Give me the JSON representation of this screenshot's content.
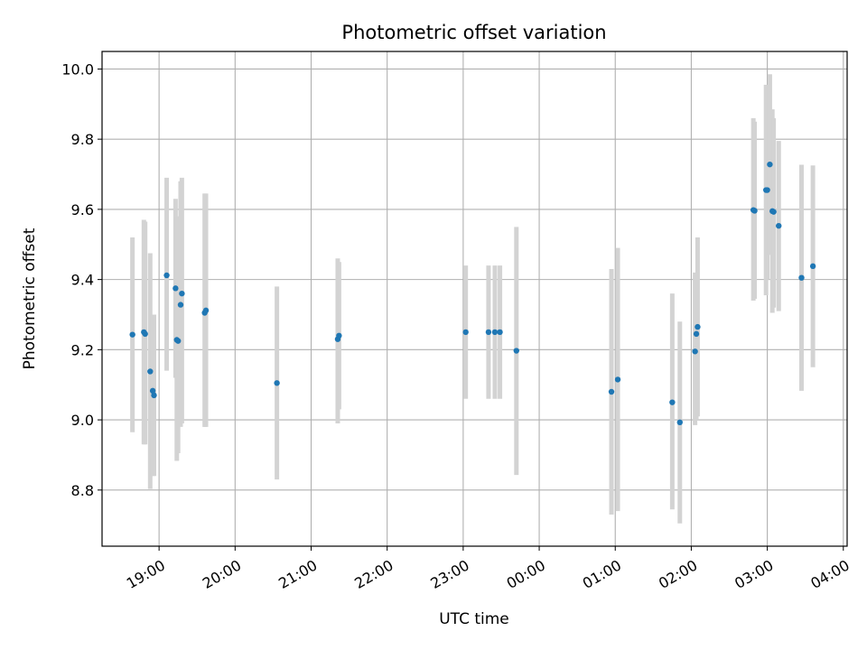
{
  "chart_data": {
    "type": "scatter",
    "title": "Photometric offset variation",
    "xlabel": "UTC time",
    "ylabel": "Photometric offset",
    "grid": true,
    "x_ticks": [
      "19:00",
      "20:00",
      "21:00",
      "22:00",
      "23:00",
      "00:00",
      "01:00",
      "02:00",
      "03:00",
      "04:00"
    ],
    "y_ticks": [
      "8.8",
      "9.0",
      "9.2",
      "9.4",
      "9.6",
      "9.8",
      "10.0"
    ],
    "xlim": [
      "18:15",
      "04:03"
    ],
    "ylim": [
      8.64,
      10.05
    ],
    "colors": {
      "marker": "#1f77b4",
      "errorbar": "#d3d3d3",
      "grid": "#b0b0b0"
    },
    "points": [
      {
        "x": "18:39",
        "y": 9.243,
        "ylo": 8.965,
        "yhi": 9.52
      },
      {
        "x": "18:48",
        "y": 9.25,
        "ylo": 8.93,
        "yhi": 9.57
      },
      {
        "x": "18:49",
        "y": 9.245,
        "ylo": 8.93,
        "yhi": 9.565
      },
      {
        "x": "18:53",
        "y": 9.138,
        "ylo": 8.803,
        "yhi": 9.475
      },
      {
        "x": "18:55",
        "y": 9.083,
        "ylo": 8.84,
        "yhi": 9.3
      },
      {
        "x": "18:56",
        "y": 9.07,
        "ylo": 8.84,
        "yhi": 9.3
      },
      {
        "x": "19:06",
        "y": 9.412,
        "ylo": 9.14,
        "yhi": 9.69
      },
      {
        "x": "19:13",
        "y": 9.375,
        "ylo": 9.12,
        "yhi": 9.63
      },
      {
        "x": "19:14",
        "y": 9.228,
        "ylo": 8.883,
        "yhi": 9.58
      },
      {
        "x": "19:15",
        "y": 9.225,
        "ylo": 8.905,
        "yhi": 9.58
      },
      {
        "x": "19:17",
        "y": 9.328,
        "ylo": 8.98,
        "yhi": 9.68
      },
      {
        "x": "19:18",
        "y": 9.36,
        "ylo": 8.99,
        "yhi": 9.69
      },
      {
        "x": "19:36",
        "y": 9.305,
        "ylo": 8.98,
        "yhi": 9.645
      },
      {
        "x": "19:37",
        "y": 9.312,
        "ylo": 8.98,
        "yhi": 9.645
      },
      {
        "x": "20:33",
        "y": 9.105,
        "ylo": 8.83,
        "yhi": 9.38
      },
      {
        "x": "21:21",
        "y": 9.23,
        "ylo": 8.99,
        "yhi": 9.46
      },
      {
        "x": "21:22",
        "y": 9.24,
        "ylo": 9.03,
        "yhi": 9.45
      },
      {
        "x": "23:02",
        "y": 9.25,
        "ylo": 9.06,
        "yhi": 9.44
      },
      {
        "x": "23:20",
        "y": 9.25,
        "ylo": 9.06,
        "yhi": 9.44
      },
      {
        "x": "23:25",
        "y": 9.25,
        "ylo": 9.06,
        "yhi": 9.44
      },
      {
        "x": "23:29",
        "y": 9.25,
        "ylo": 9.06,
        "yhi": 9.44
      },
      {
        "x": "23:42",
        "y": 9.197,
        "ylo": 8.843,
        "yhi": 9.55
      },
      {
        "x": "00:57",
        "y": 9.08,
        "ylo": 8.73,
        "yhi": 9.43
      },
      {
        "x": "01:02",
        "y": 9.115,
        "ylo": 8.74,
        "yhi": 9.49
      },
      {
        "x": "01:45",
        "y": 9.05,
        "ylo": 8.745,
        "yhi": 9.36
      },
      {
        "x": "01:51",
        "y": 8.993,
        "ylo": 8.705,
        "yhi": 9.28
      },
      {
        "x": "02:03",
        "y": 9.195,
        "ylo": 8.985,
        "yhi": 9.42
      },
      {
        "x": "02:04",
        "y": 9.245,
        "ylo": 9.0,
        "yhi": 9.38
      },
      {
        "x": "02:05",
        "y": 9.265,
        "ylo": 9.01,
        "yhi": 9.52
      },
      {
        "x": "02:49",
        "y": 9.598,
        "ylo": 9.34,
        "yhi": 9.86
      },
      {
        "x": "02:50",
        "y": 9.596,
        "ylo": 9.345,
        "yhi": 9.85
      },
      {
        "x": "02:59",
        "y": 9.655,
        "ylo": 9.355,
        "yhi": 9.955
      },
      {
        "x": "03:00",
        "y": 9.655,
        "ylo": 9.4,
        "yhi": 9.9
      },
      {
        "x": "03:02",
        "y": 9.728,
        "ylo": 9.47,
        "yhi": 9.985
      },
      {
        "x": "03:04",
        "y": 9.595,
        "ylo": 9.305,
        "yhi": 9.885
      },
      {
        "x": "03:05",
        "y": 9.593,
        "ylo": 9.32,
        "yhi": 9.86
      },
      {
        "x": "03:09",
        "y": 9.553,
        "ylo": 9.31,
        "yhi": 9.795
      },
      {
        "x": "03:27",
        "y": 9.405,
        "ylo": 9.083,
        "yhi": 9.727
      },
      {
        "x": "03:36",
        "y": 9.438,
        "ylo": 9.15,
        "yhi": 9.725
      }
    ]
  }
}
